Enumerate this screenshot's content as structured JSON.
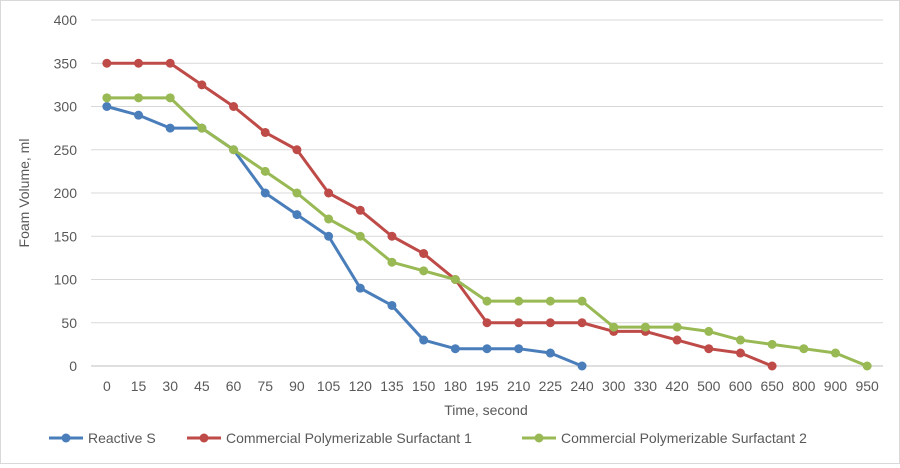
{
  "chart_data": {
    "type": "line",
    "title": "",
    "xlabel": "Time, second",
    "ylabel": "Foam Volume, ml",
    "ylim": [
      0,
      400
    ],
    "yticks": [
      0,
      50,
      100,
      150,
      200,
      250,
      300,
      350,
      400
    ],
    "grid": "horizontal",
    "legend_position": "bottom",
    "categories": [
      "0",
      "15",
      "30",
      "45",
      "60",
      "75",
      "90",
      "105",
      "120",
      "135",
      "150",
      "180",
      "195",
      "210",
      "225",
      "240",
      "300",
      "330",
      "420",
      "500",
      "600",
      "650",
      "800",
      "900",
      "950"
    ],
    "series": [
      {
        "name": "Reactive S",
        "color": "#4a7ebb",
        "values": [
          300,
          290,
          275,
          275,
          250,
          200,
          175,
          150,
          90,
          70,
          30,
          20,
          20,
          20,
          15,
          0,
          null,
          null,
          null,
          null,
          null,
          null,
          null,
          null,
          null
        ]
      },
      {
        "name": "Commercial Polymerizable Surfactant 1",
        "color": "#be4b48",
        "values": [
          350,
          350,
          350,
          325,
          300,
          270,
          250,
          200,
          180,
          150,
          130,
          100,
          50,
          50,
          50,
          50,
          40,
          40,
          30,
          20,
          15,
          0,
          null,
          null,
          null
        ]
      },
      {
        "name": "Commercial Polymerizable Surfactant 2",
        "color": "#98b954",
        "values": [
          310,
          310,
          310,
          275,
          250,
          225,
          200,
          170,
          150,
          120,
          110,
          100,
          75,
          75,
          75,
          75,
          45,
          45,
          45,
          40,
          30,
          25,
          20,
          15,
          0
        ]
      }
    ]
  }
}
